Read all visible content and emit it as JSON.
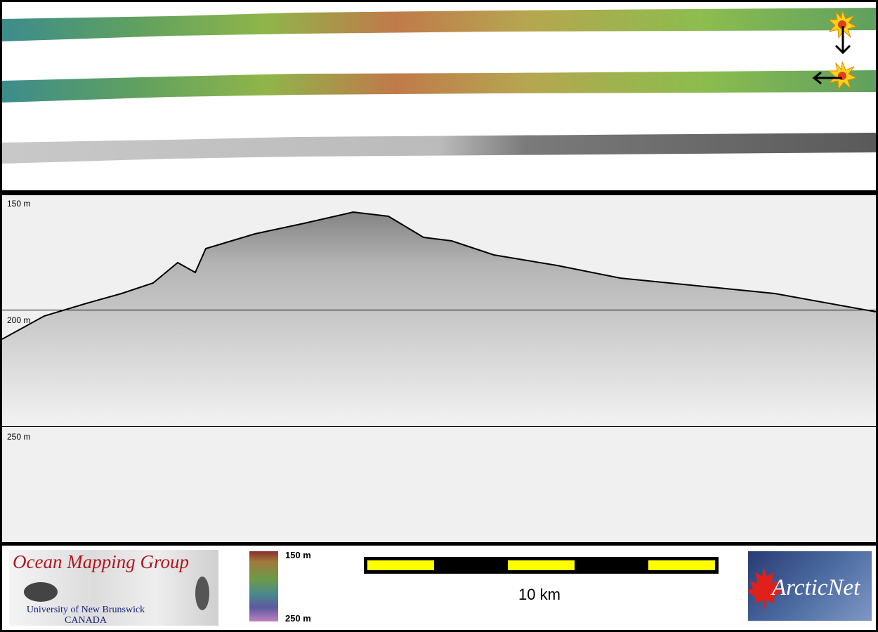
{
  "profile": {
    "depth_labels": [
      "150 m",
      "200 m",
      "250 m"
    ]
  },
  "legend": {
    "logo_omg": {
      "title": "Ocean Mapping Group",
      "line1": "University of New Brunswick",
      "line2": "CANADA"
    },
    "colorbar": {
      "top_label": "150 m",
      "bottom_label": "250 m"
    },
    "scale": {
      "label": "10 km",
      "colors": [
        "#000000",
        "#ffff00"
      ]
    },
    "logo_arcticnet": {
      "text": "ArcticNet"
    }
  },
  "colors": {
    "seafloor_trace": "#000000",
    "marker": "#ffd21a",
    "arrow": "#000000"
  },
  "icons": [
    "explosion-marker-icon",
    "arrow-down-icon",
    "arrow-left-icon",
    "maple-leaf-icon"
  ]
}
